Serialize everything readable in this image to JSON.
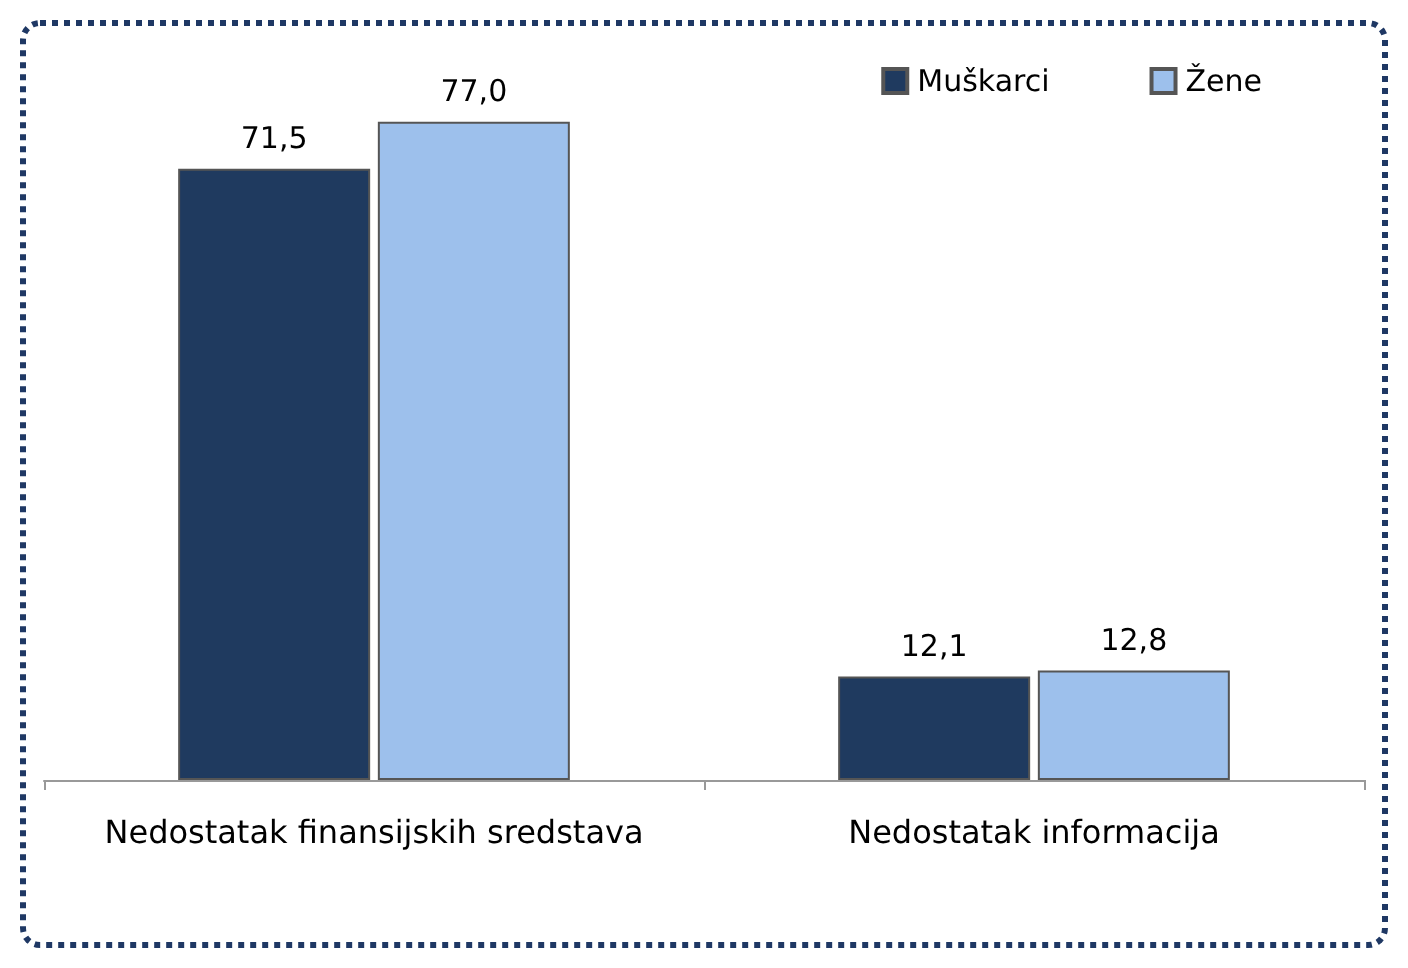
{
  "chart_data": {
    "type": "bar",
    "categories": [
      "Nedostatak finansijskih sredstava",
      "Nedostatak informacija"
    ],
    "series": [
      {
        "name": "Muškarci",
        "color": "#1f3a5f",
        "values": [
          71.5,
          12.1
        ],
        "value_labels": [
          "71,5",
          "12,1"
        ]
      },
      {
        "name": "Žene",
        "color": "#9dc0ec",
        "values": [
          77.0,
          12.8
        ],
        "value_labels": [
          "77,0",
          "12,8"
        ]
      }
    ],
    "legend": "top right",
    "grid": false
  }
}
